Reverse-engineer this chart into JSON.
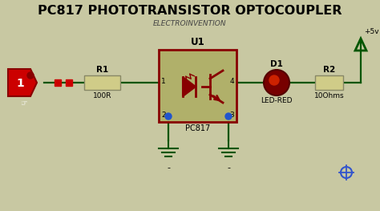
{
  "title": "PC817 PHOTOTRANSISTOR OPTOCOUPLER",
  "subtitle": "ELECTROINVENTION",
  "bg_color": "#c8c8a2",
  "title_color": "#000000",
  "title_fontsize": 11.5,
  "subtitle_fontsize": 6.5,
  "figsize": [
    4.74,
    2.63
  ],
  "dpi": 100,
  "plus5v_label": "+5v",
  "r1_label": "R1",
  "r1_val": "100R",
  "u1_label": "U1",
  "u1_ic_label": "PC817",
  "d1_label": "D1",
  "d1_val": "LED-RED",
  "r2_label": "R2",
  "r2_val": "10Ohms",
  "pin1": "1",
  "pin2": "2",
  "pin3": "3",
  "pin4": "4",
  "gnd_label": "-",
  "crosshair_color": "#3355cc",
  "wire_color": "#005500",
  "dark_red": "#880000",
  "mid_red": "#aa0000",
  "bright_red": "#cc0000"
}
